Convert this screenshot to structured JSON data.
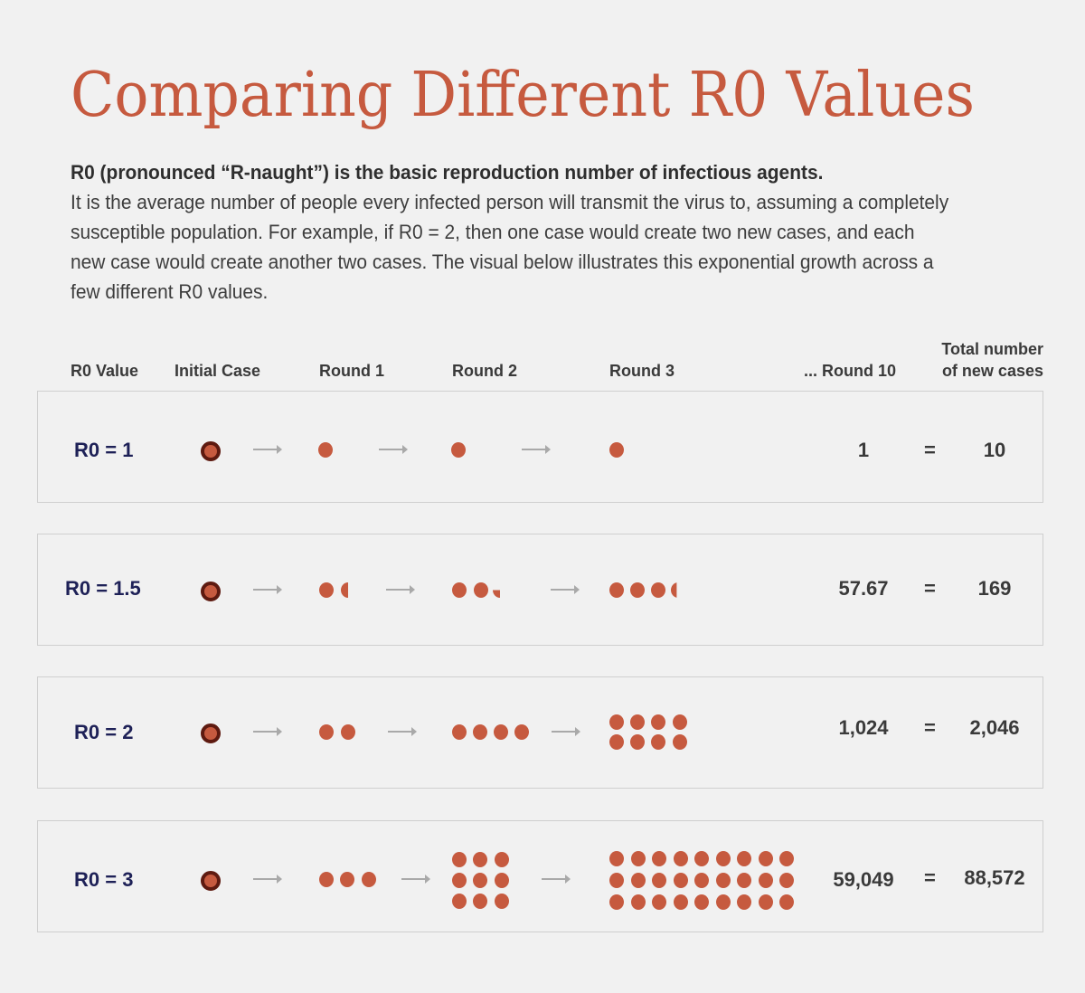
{
  "title": "Comparing Different R0 Values",
  "intro": {
    "bold": "R0 (pronounced “R-naught”) is the basic reproduction number of infectious agents.",
    "body": "It is the average number of people every infected person will transmit the virus to, assuming a completely susceptible population. For example, if R0 = 2, then one case would create two new cases, and each new case would create another two cases. The visual below illustrates this exponential growth across a few different R0 values."
  },
  "headers": {
    "r0_value": "R0 Value",
    "initial_case": "Initial Case",
    "round1": "Round 1",
    "round2": "Round 2",
    "round3": "Round 3",
    "round10": "... Round 10",
    "total_line1": "Total number",
    "total_line2": "of new cases"
  },
  "colors": {
    "title": "#c65a3f",
    "dot": "#c65a3f",
    "initial_ring": "#5e1a10",
    "r0_label": "#1e2157",
    "text": "#3a3a3a",
    "background": "#f1f1f1",
    "border": "#cfcfcf",
    "arrow": "#a9a9a9"
  },
  "rows": [
    {
      "label": "R0 = 1",
      "r0": 1,
      "round1": 1,
      "round2": 1,
      "round3": 1,
      "round10": "1",
      "equals": "=",
      "total": "10"
    },
    {
      "label": "R0 = 1.5",
      "r0": 1.5,
      "round1": 1.5,
      "round2": 2.25,
      "round3": 3.375,
      "round10": "57.67",
      "equals": "=",
      "total": "169"
    },
    {
      "label": "R0 = 2",
      "r0": 2,
      "round1": 2,
      "round2": 4,
      "round3": 8,
      "round10": "1,024",
      "equals": "=",
      "total": "2,046"
    },
    {
      "label": "R0 = 3",
      "r0": 3,
      "round1": 3,
      "round2": 9,
      "round3": 27,
      "round10": "59,049",
      "equals": "=",
      "total": "88,572"
    }
  ],
  "chart_data": {
    "type": "table",
    "title": "Comparing Different R0 Values",
    "columns": [
      "R0 Value",
      "Initial Case",
      "Round 1",
      "Round 2",
      "Round 3",
      "... Round 10",
      "Total number of new cases"
    ],
    "series": [
      {
        "name": "R0 = 1",
        "values": [
          1,
          1,
          1,
          1,
          1,
          10
        ]
      },
      {
        "name": "R0 = 1.5",
        "values": [
          1,
          1.5,
          2.25,
          3.375,
          57.67,
          169
        ]
      },
      {
        "name": "R0 = 2",
        "values": [
          1,
          2,
          4,
          8,
          1024,
          2046
        ]
      },
      {
        "name": "R0 = 3",
        "values": [
          1,
          3,
          9,
          27,
          59049,
          88572
        ]
      }
    ]
  }
}
